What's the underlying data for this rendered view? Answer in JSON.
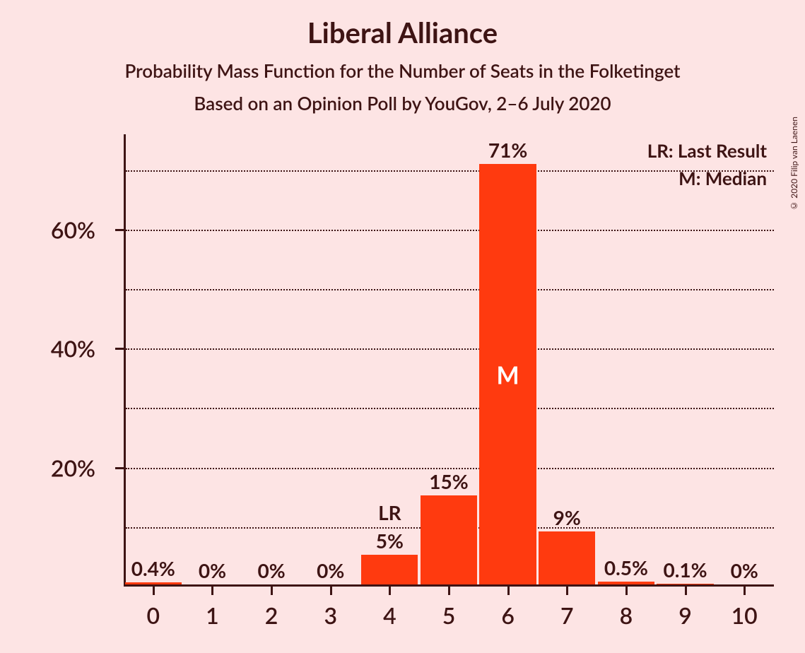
{
  "chart": {
    "title": "Liberal Alliance",
    "subtitle": "Probability Mass Function for the Number of Seats in the Folketinget",
    "sub_subtitle": "Based on an Opinion Poll by YouGov, 2–6 July 2020",
    "type": "bar",
    "background_color": "#fde4e4",
    "bar_color": "#ff3a0f",
    "text_color": "#3e1414",
    "median_text_color": "#ffffff",
    "title_fontsize": 40,
    "subtitle_fontsize": 26,
    "axis_label_fontsize": 32,
    "bar_label_fontsize": 28,
    "categories": [
      "0",
      "1",
      "2",
      "3",
      "4",
      "5",
      "6",
      "7",
      "8",
      "9",
      "10"
    ],
    "values": [
      0.4,
      0,
      0,
      0,
      5,
      15,
      71,
      9,
      0.5,
      0.1,
      0
    ],
    "value_labels": [
      "0.4%",
      "0%",
      "0%",
      "0%",
      "5%",
      "15%",
      "71%",
      "9%",
      "0.5%",
      "0.1%",
      "0%"
    ],
    "lr_index": 4,
    "median_index": 6,
    "ytick_labels": [
      "20%",
      "40%",
      "60%"
    ],
    "ytick_values": [
      20,
      40,
      60
    ],
    "minor_gridlines": [
      10,
      30,
      50,
      70
    ],
    "ymax": 76,
    "bar_width_ratio": 0.96,
    "legend": {
      "lr": "LR: Last Result",
      "m": "M: Median"
    },
    "lr_text": "LR",
    "m_text": "M",
    "copyright": "© 2020 Filip van Laenen"
  }
}
